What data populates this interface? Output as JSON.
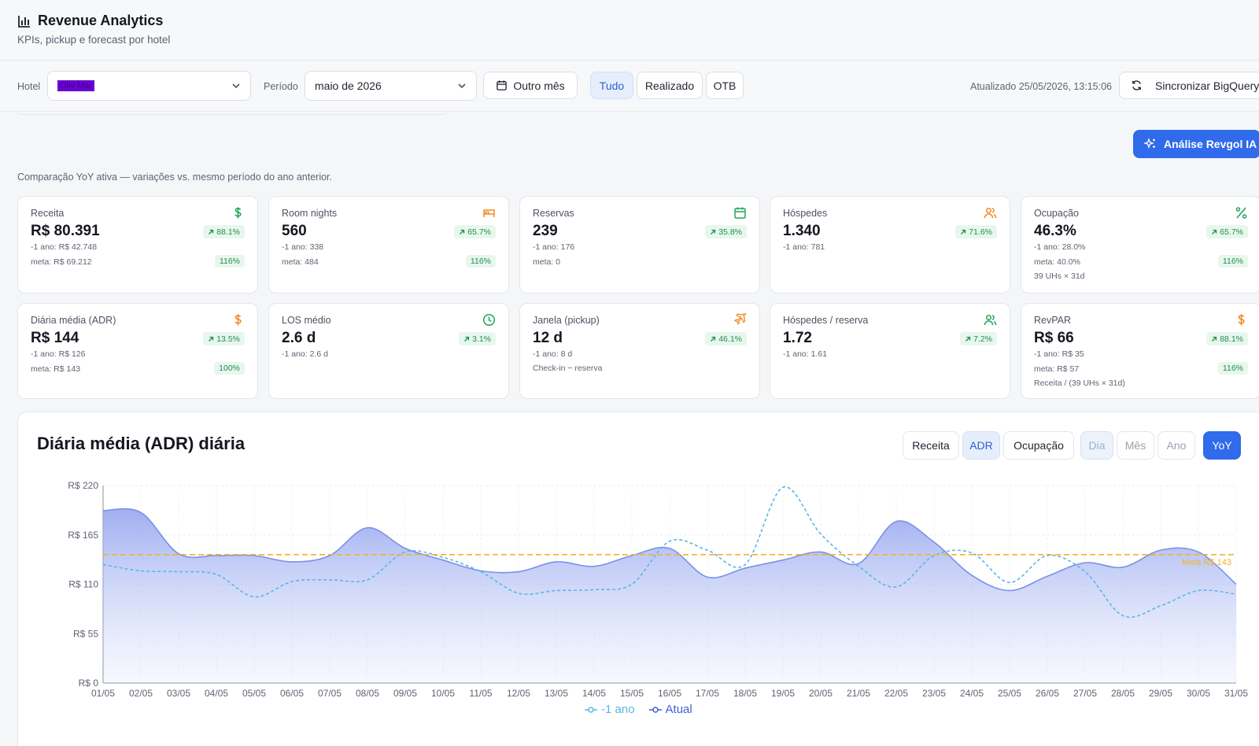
{
  "header": {
    "title": "Revenue Analytics",
    "subtitle": "KPIs, pickup e forecast por hotel"
  },
  "toolbar": {
    "hotel_label": "Hotel",
    "hotel_value": "Oliv Mar",
    "period_label": "Período",
    "period_value": "maio de 2026",
    "other_month": "Outro mês",
    "filters": [
      "Tudo",
      "Realizado",
      "OTB"
    ],
    "active_filter": "Tudo",
    "updated": "Atualizado 25/05/2026, 13:15:06",
    "sync": "Sincronizar BigQuery"
  },
  "ai_button": "Análise Revgol IA",
  "yoy_note": "Comparação YoY ativa — variações vs. mesmo período do ano anterior.",
  "kpis": [
    {
      "label": "Receita",
      "value": "R$ 80.391",
      "delta": "88.1%",
      "prev": "-1 ano: R$ 42.748",
      "meta": "meta: R$ 69.212",
      "meta_pct": "116%",
      "icon": "dollar-icon",
      "color": "#22a35a"
    },
    {
      "label": "Room nights",
      "value": "560",
      "delta": "65.7%",
      "prev": "-1 ano: 338",
      "meta": "meta: 484",
      "meta_pct": "116%",
      "icon": "bed-icon",
      "color": "#f08a24"
    },
    {
      "label": "Reservas",
      "value": "239",
      "delta": "35.8%",
      "prev": "-1 ano: 176",
      "meta": "meta: 0",
      "meta_pct": "",
      "icon": "calendar-icon",
      "color": "#22a35a"
    },
    {
      "label": "Hóspedes",
      "value": "1.340",
      "delta": "71.6%",
      "prev": "-1 ano: 781",
      "meta": "",
      "meta_pct": "",
      "icon": "users-icon",
      "color": "#f08a24"
    },
    {
      "label": "Ocupação",
      "value": "46.3%",
      "delta": "65.7%",
      "prev": "-1 ano: 28.0%",
      "meta": "meta: 40.0%",
      "meta_pct": "116%",
      "extra": "39 UHs × 31d",
      "icon": "percent-icon",
      "color": "#22a35a"
    },
    {
      "label": "Diária média (ADR)",
      "value": "R$ 144",
      "delta": "13.5%",
      "prev": "-1 ano: R$ 126",
      "meta": "meta: R$ 143",
      "meta_pct": "100%",
      "icon": "dollar-icon",
      "color": "#f08a24"
    },
    {
      "label": "LOS médio",
      "value": "2.6 d",
      "delta": "3.1%",
      "prev": "-1 ano: 2.6 d",
      "meta": "",
      "meta_pct": "",
      "icon": "clock-icon",
      "color": "#22a35a"
    },
    {
      "label": "Janela (pickup)",
      "value": "12 d",
      "delta": "46.1%",
      "prev": "-1 ano: 8 d",
      "meta": "",
      "meta_pct": "",
      "extra": "Check-in − reserva",
      "icon": "plane-icon",
      "color": "#f08a24"
    },
    {
      "label": "Hóspedes / reserva",
      "value": "1.72",
      "delta": "7.2%",
      "prev": "-1 ano: 1.61",
      "meta": "",
      "meta_pct": "",
      "icon": "users-icon",
      "color": "#22a35a"
    },
    {
      "label": "RevPAR",
      "value": "R$ 66",
      "delta": "88.1%",
      "prev": "-1 ano: R$ 35",
      "meta": "meta: R$ 57",
      "meta_pct": "116%",
      "extra": "Receita / (39 UHs × 31d)",
      "icon": "dollar-icon",
      "color": "#f08a24"
    }
  ],
  "chart_panel": {
    "title": "Diária média (ADR) diária",
    "metric_buttons": [
      "Receita",
      "ADR",
      "Ocupação"
    ],
    "active_metric": "ADR",
    "granularity_buttons": [
      "Dia",
      "Mês",
      "Ano"
    ],
    "active_granularity": "Dia",
    "yoy_button": "YoY"
  },
  "chart_data": {
    "type": "area",
    "x": [
      "01/05",
      "02/05",
      "03/05",
      "04/05",
      "05/05",
      "06/05",
      "07/05",
      "08/05",
      "09/05",
      "10/05",
      "11/05",
      "12/05",
      "13/05",
      "14/05",
      "15/05",
      "16/05",
      "17/05",
      "18/05",
      "19/05",
      "20/05",
      "21/05",
      "22/05",
      "23/05",
      "24/05",
      "25/05",
      "26/05",
      "27/05",
      "28/05",
      "29/05",
      "30/05",
      "31/05"
    ],
    "y_ticks": [
      "R$ 0",
      "R$ 55",
      "R$ 110",
      "R$ 165",
      "R$ 220"
    ],
    "ylim": [
      0,
      220
    ],
    "series": [
      {
        "name": "-1 ano",
        "style": "dashed-line",
        "color": "#5bb5e6",
        "values": [
          132,
          125,
          124,
          121,
          96,
          113,
          115,
          115,
          146,
          140,
          124,
          100,
          103,
          104,
          110,
          158,
          148,
          132,
          218,
          166,
          130,
          107,
          142,
          145,
          112,
          142,
          124,
          75,
          86,
          103,
          99
        ]
      },
      {
        "name": "Atual",
        "style": "area",
        "color": "#7b90e8",
        "values": [
          192,
          190,
          144,
          142,
          142,
          135,
          142,
          173,
          150,
          137,
          125,
          124,
          135,
          130,
          142,
          150,
          118,
          128,
          137,
          146,
          133,
          180,
          157,
          120,
          103,
          119,
          134,
          129,
          148,
          146,
          110
        ]
      }
    ],
    "reference_line": {
      "label": "Meta R$ 143",
      "value": 143,
      "color": "#f0b429"
    },
    "grid": true,
    "legend": "bottom-center"
  }
}
